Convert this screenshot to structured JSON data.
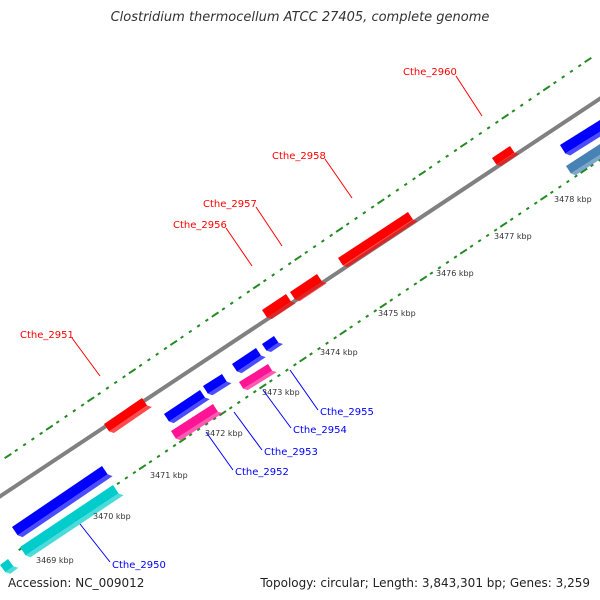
{
  "title": "Clostridium thermocellum ATCC 27405, complete genome",
  "footer": {
    "accession": "Accession: NC_009012",
    "summary": "Topology: circular; Length: 3,843,301 bp; Genes: 3,259"
  },
  "colors": {
    "backbone": "#808080",
    "forward_gene": "#ff0000",
    "reverse_gene": "#0000ff",
    "reverse_gene_pink": "#ff1493",
    "reverse_gene_cyan": "#00cccc",
    "steel_blue_gene": "#4682b4",
    "tick": "#228b22"
  },
  "scale_labels": [
    "3469 kbp",
    "3470 kbp",
    "3471 kbp",
    "3472 kbp",
    "3473 kbp",
    "3474 kbp",
    "3475 kbp",
    "3476 kbp",
    "3477 kbp",
    "3478 kbp"
  ],
  "genes": [
    {
      "name": "Cthe_2951",
      "strand": "forward",
      "color": "#ff0000"
    },
    {
      "name": "Cthe_2956",
      "strand": "forward",
      "color": "#ff0000"
    },
    {
      "name": "Cthe_2957",
      "strand": "forward",
      "color": "#ff0000"
    },
    {
      "name": "Cthe_2958",
      "strand": "forward",
      "color": "#ff0000"
    },
    {
      "name": "Cthe_2960",
      "strand": "forward",
      "color": "#ff0000"
    },
    {
      "name": "Cthe_2950",
      "strand": "reverse",
      "color": "#0000ff"
    },
    {
      "name": "Cthe_2952",
      "strand": "reverse",
      "color": "#0000ff"
    },
    {
      "name": "Cthe_2953",
      "strand": "reverse",
      "color": "#0000ff"
    },
    {
      "name": "Cthe_2954",
      "strand": "reverse",
      "color": "#0000ff"
    },
    {
      "name": "Cthe_2955",
      "strand": "reverse",
      "color": "#0000ff"
    }
  ]
}
